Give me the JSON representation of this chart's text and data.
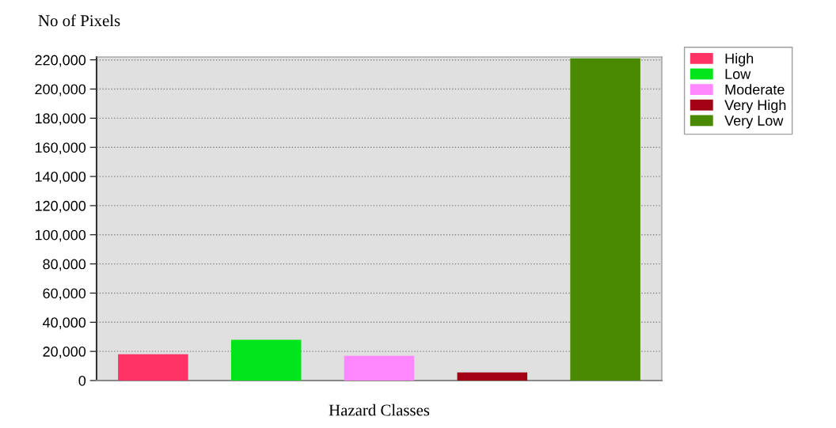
{
  "chart_data": {
    "type": "bar",
    "ylabel": "No of Pixels",
    "xlabel": "Hazard Classes",
    "categories": [
      null,
      null,
      null,
      null,
      null
    ],
    "series": [
      {
        "name": "High",
        "color": "#ff3366",
        "values": [
          18000,
          null,
          null,
          null,
          null
        ]
      },
      {
        "name": "Low",
        "color": "#00e61a",
        "values": [
          null,
          28000,
          null,
          null,
          null
        ]
      },
      {
        "name": "Moderate",
        "color": "#ff88ff",
        "values": [
          null,
          null,
          17000,
          null,
          null
        ]
      },
      {
        "name": "Very High",
        "color": "#a30014",
        "values": [
          null,
          null,
          null,
          5500,
          null
        ]
      },
      {
        "name": "Very Low",
        "color": "#4a8a00",
        "values": [
          null,
          null,
          null,
          null,
          221000
        ]
      }
    ],
    "ylim": [
      0,
      222000
    ],
    "yticks": [
      {
        "value": 0,
        "label": "0"
      },
      {
        "value": 20000,
        "label": "20,000"
      },
      {
        "value": 40000,
        "label": "40,000"
      },
      {
        "value": 60000,
        "label": "60,000"
      },
      {
        "value": 80000,
        "label": "80,000"
      },
      {
        "value": 100000,
        "label": "100,000"
      },
      {
        "value": 120000,
        "label": "120,000"
      },
      {
        "value": 140000,
        "label": "140,000"
      },
      {
        "value": 160000,
        "label": "160,000"
      },
      {
        "value": 180000,
        "label": "180,000"
      },
      {
        "value": 200000,
        "label": "200,000"
      },
      {
        "value": 220000,
        "label": "220,000"
      }
    ],
    "grid": "y",
    "legend": "top right"
  }
}
